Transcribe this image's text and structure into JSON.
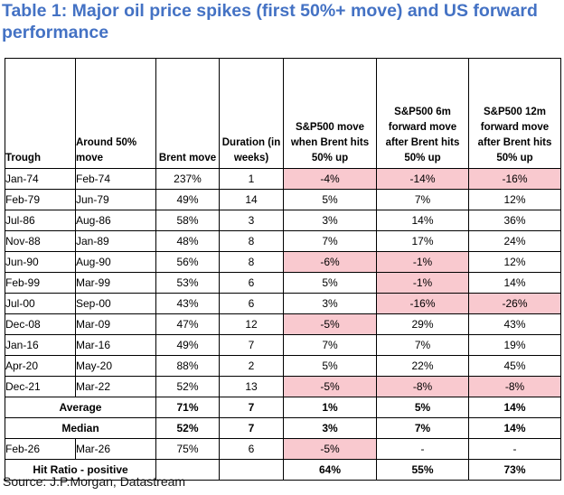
{
  "title": "Table 1: Major oil price spikes (first 50%+ move) and US forward performance",
  "source": "Source: J.P.Morgan, Datastream",
  "highlight_color": "#f9c9cf",
  "title_color": "#4472c4",
  "columns": {
    "trough": "Trough",
    "around50": "Around 50% move",
    "brent": "Brent move",
    "duration": "Duration (in weeks)",
    "sp_move": "S&P500 move when Brent hits 50% up",
    "sp_6m": "S&P500 6m forward move after Brent hits 50% up",
    "sp_12m": "S&P500 12m forward move after Brent hits 50% up"
  },
  "rows": [
    {
      "trough": "Jan-74",
      "around": "Feb-74",
      "brent": "237%",
      "dur": "1",
      "move": "-4%",
      "f6": "-14%",
      "f12": "-16%"
    },
    {
      "trough": "Feb-79",
      "around": "Jun-79",
      "brent": "49%",
      "dur": "14",
      "move": "5%",
      "f6": "7%",
      "f12": "12%"
    },
    {
      "trough": "Jul-86",
      "around": "Aug-86",
      "brent": "58%",
      "dur": "3",
      "move": "3%",
      "f6": "14%",
      "f12": "36%"
    },
    {
      "trough": "Nov-88",
      "around": "Jan-89",
      "brent": "48%",
      "dur": "8",
      "move": "7%",
      "f6": "17%",
      "f12": "24%"
    },
    {
      "trough": "Jun-90",
      "around": "Aug-90",
      "brent": "56%",
      "dur": "8",
      "move": "-6%",
      "f6": "-1%",
      "f12": "12%"
    },
    {
      "trough": "Feb-99",
      "around": "Mar-99",
      "brent": "53%",
      "dur": "6",
      "move": "5%",
      "f6": "-1%",
      "f12": "14%"
    },
    {
      "trough": "Jul-00",
      "around": "Sep-00",
      "brent": "43%",
      "dur": "6",
      "move": "3%",
      "f6": "-16%",
      "f12": "-26%"
    },
    {
      "trough": "Dec-08",
      "around": "Mar-09",
      "brent": "47%",
      "dur": "12",
      "move": "-5%",
      "f6": "29%",
      "f12": "43%"
    },
    {
      "trough": "Jan-16",
      "around": "Mar-16",
      "brent": "49%",
      "dur": "7",
      "move": "7%",
      "f6": "7%",
      "f12": "19%"
    },
    {
      "trough": "Apr-20",
      "around": "May-20",
      "brent": "88%",
      "dur": "2",
      "move": "5%",
      "f6": "22%",
      "f12": "45%"
    },
    {
      "trough": "Dec-21",
      "around": "Mar-22",
      "brent": "52%",
      "dur": "13",
      "move": "-5%",
      "f6": "-8%",
      "f12": "-8%"
    }
  ],
  "average": {
    "label": "Average",
    "brent": "71%",
    "dur": "7",
    "move": "1%",
    "f6": "5%",
    "f12": "14%"
  },
  "median": {
    "label": "Median",
    "brent": "52%",
    "dur": "7",
    "move": "3%",
    "f6": "7%",
    "f12": "14%"
  },
  "current": {
    "trough": "Feb-26",
    "around": "Mar-26",
    "brent": "75%",
    "dur": "6",
    "move": "-5%",
    "f6": "-",
    "f12": "-"
  },
  "hit_ratio": {
    "label": "Hit Ratio - positive",
    "move": "64%",
    "f6": "55%",
    "f12": "73%"
  }
}
